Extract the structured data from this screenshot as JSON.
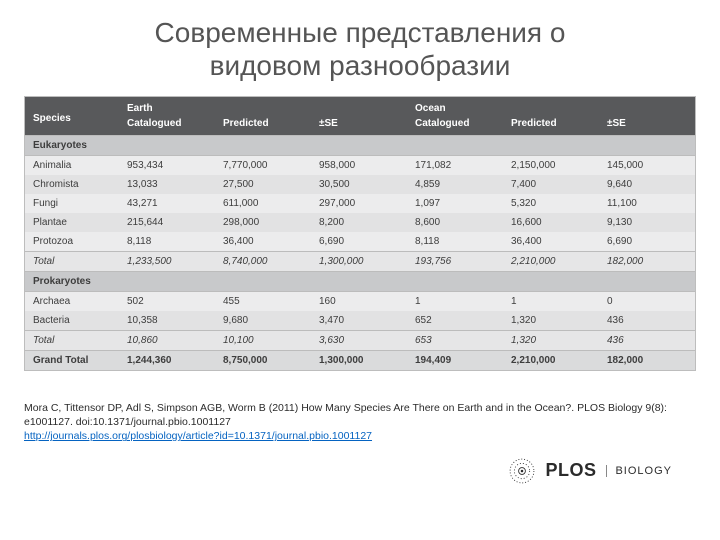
{
  "title_line1": "Современные представления о",
  "title_line2": "видовом разнообразии",
  "table": {
    "header": {
      "species": "Species",
      "earth": "Earth",
      "ocean": "Ocean",
      "catalogued": "Catalogued",
      "predicted": "Predicted",
      "se": "±SE"
    },
    "sections": [
      {
        "label": "Eukaryotes",
        "rows": [
          {
            "name": "Animalia",
            "e_cat": "953,434",
            "e_pred": "7,770,000",
            "e_se": "958,000",
            "o_cat": "171,082",
            "o_pred": "2,150,000",
            "o_se": "145,000"
          },
          {
            "name": "Chromista",
            "e_cat": "13,033",
            "e_pred": "27,500",
            "e_se": "30,500",
            "o_cat": "4,859",
            "o_pred": "7,400",
            "o_se": "9,640"
          },
          {
            "name": "Fungi",
            "e_cat": "43,271",
            "e_pred": "611,000",
            "e_se": "297,000",
            "o_cat": "1,097",
            "o_pred": "5,320",
            "o_se": "11,100"
          },
          {
            "name": "Plantae",
            "e_cat": "215,644",
            "e_pred": "298,000",
            "e_se": "8,200",
            "o_cat": "8,600",
            "o_pred": "16,600",
            "o_se": "9,130"
          },
          {
            "name": "Protozoa",
            "e_cat": "8,118",
            "e_pred": "36,400",
            "e_se": "6,690",
            "o_cat": "8,118",
            "o_pred": "36,400",
            "o_se": "6,690"
          }
        ],
        "total": {
          "name": "Total",
          "e_cat": "1,233,500",
          "e_pred": "8,740,000",
          "e_se": "1,300,000",
          "o_cat": "193,756",
          "o_pred": "2,210,000",
          "o_se": "182,000"
        }
      },
      {
        "label": "Prokaryotes",
        "rows": [
          {
            "name": "Archaea",
            "e_cat": "502",
            "e_pred": "455",
            "e_se": "160",
            "o_cat": "1",
            "o_pred": "1",
            "o_se": "0"
          },
          {
            "name": "Bacteria",
            "e_cat": "10,358",
            "e_pred": "9,680",
            "e_se": "3,470",
            "o_cat": "652",
            "o_pred": "1,320",
            "o_se": "436"
          }
        ],
        "total": {
          "name": "Total",
          "e_cat": "10,860",
          "e_pred": "10,100",
          "e_se": "3,630",
          "o_cat": "653",
          "o_pred": "1,320",
          "o_se": "436"
        }
      }
    ],
    "grand": {
      "name": "Grand Total",
      "e_cat": "1,244,360",
      "e_pred": "8,750,000",
      "e_se": "1,300,000",
      "o_cat": "194,409",
      "o_pred": "2,210,000",
      "o_se": "182,000"
    }
  },
  "citation": {
    "text": "Mora C, Tittensor DP, Adl S, Simpson AGB, Worm B (2011) How Many Species Are There on Earth and in the Ocean?. PLOS Biology 9(8): e1001127. doi:10.1371/journal.pbio.1001127",
    "url": "http://journals.plos.org/plosbiology/article?id=10.1371/journal.pbio.1001127"
  },
  "logo": {
    "plos": "PLOS",
    "biology": "BIOLOGY"
  }
}
